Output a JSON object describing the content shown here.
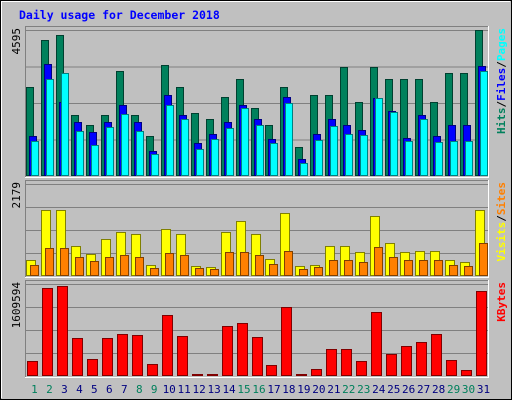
{
  "chart_data": {
    "type": "bar",
    "title": "Daily usage for December 2018",
    "categories": [
      "1",
      "2",
      "3",
      "4",
      "5",
      "6",
      "7",
      "8",
      "9",
      "10",
      "11",
      "12",
      "13",
      "14",
      "15",
      "16",
      "17",
      "18",
      "19",
      "20",
      "21",
      "22",
      "23",
      "24",
      "25",
      "26",
      "27",
      "28",
      "29",
      "30",
      "31"
    ],
    "weekend_days": [
      "1",
      "2",
      "8",
      "9",
      "15",
      "16",
      "22",
      "23",
      "29",
      "30"
    ],
    "colors": {
      "hits": "#00805c",
      "files": "#0000ff",
      "pages": "#00ffff",
      "visits": "#ffff00",
      "sites": "#ff8000",
      "kbytes": "#ff0000",
      "title_color": "#0000ff",
      "weekday_label": "#000080",
      "weekend_label": "#00805c",
      "panel_bg": "#c0c0c0",
      "grid": "#808080"
    },
    "panels": [
      {
        "name": "hits-files-pages",
        "ymax_label": "4595",
        "ymax": 4595,
        "side_labels": [
          {
            "text": "Hits",
            "color": "#00805c"
          },
          {
            "text": "/",
            "color": "#000000"
          },
          {
            "text": "Files",
            "color": "#0000ff"
          },
          {
            "text": "/",
            "color": "#000000"
          },
          {
            "text": "Pages",
            "color": "#00ffff"
          }
        ],
        "series": [
          {
            "name": "Hits",
            "values": [
              2790,
              4290,
              4440,
              1930,
              1600,
              1930,
              3300,
              1930,
              1250,
              3490,
              2790,
              1970,
              1780,
              2500,
              3060,
              2150,
              1600,
              2790,
              900,
              2540,
              2540,
              3440,
              2320,
              3430,
              3060,
              3060,
              3060,
              2320,
              3250,
              3250,
              4595
            ]
          },
          {
            "name": "Files",
            "values": [
              1250,
              3520,
              2320,
              1700,
              1370,
              1700,
              2240,
              1700,
              800,
              2540,
              1930,
              1050,
              1320,
              1700,
              2240,
              1790,
              1170,
              2500,
              520,
              1310,
              1780,
              1600,
              1440,
              2460,
              2060,
              1190,
              1930,
              1250,
              1600,
              1600,
              3450
            ]
          },
          {
            "name": "Pages",
            "values": [
              1100,
              3060,
              3240,
              1420,
              970,
              1550,
              1950,
              1420,
              690,
              2240,
              1780,
              840,
              1150,
              1520,
              2150,
              1600,
              1040,
              2310,
              410,
              1140,
              1570,
              1310,
              1280,
              2460,
              2010,
              1110,
              1780,
              1070,
              1090,
              1090,
              3300
            ]
          }
        ]
      },
      {
        "name": "visits-sites",
        "ymax_label": "2179",
        "ymax": 2179,
        "side_labels": [
          {
            "text": "Visits",
            "color": "#ffff00"
          },
          {
            "text": "/",
            "color": "#000000"
          },
          {
            "text": "Sites",
            "color": "#ff8000"
          }
        ],
        "series": [
          {
            "name": "Visits",
            "values": [
              390,
              1570,
              1570,
              700,
              520,
              880,
              1040,
              1000,
              270,
              1110,
              1000,
              240,
              210,
              1040,
              1300,
              1000,
              400,
              1500,
              230,
              260,
              700,
              700,
              560,
              1420,
              780,
              560,
              590,
              590,
              370,
              330,
              1570
            ]
          },
          {
            "name": "Sites",
            "values": [
              260,
              660,
              660,
              450,
              350,
              450,
              500,
              450,
              200,
              550,
              500,
              190,
              170,
              570,
              580,
              500,
              280,
              590,
              170,
              210,
              370,
              370,
              330,
              690,
              440,
              370,
              370,
              370,
              260,
              230,
              790
            ]
          }
        ]
      },
      {
        "name": "kbytes",
        "ymax_label": "1609594",
        "ymax": 1609594,
        "side_labels": [
          {
            "text": "KBytes",
            "color": "#ff0000"
          }
        ],
        "series": [
          {
            "name": "KBytes",
            "values": [
              260000,
              1540000,
              1580000,
              670000,
              290000,
              660000,
              730000,
              720000,
              210000,
              1070000,
              700000,
              40000,
              40000,
              870000,
              930000,
              680000,
              190000,
              1200000,
              30000,
              120000,
              480000,
              470000,
              260000,
              1120000,
              380000,
              530000,
              590000,
              740000,
              280000,
              110000,
              1490000
            ]
          }
        ]
      }
    ]
  }
}
